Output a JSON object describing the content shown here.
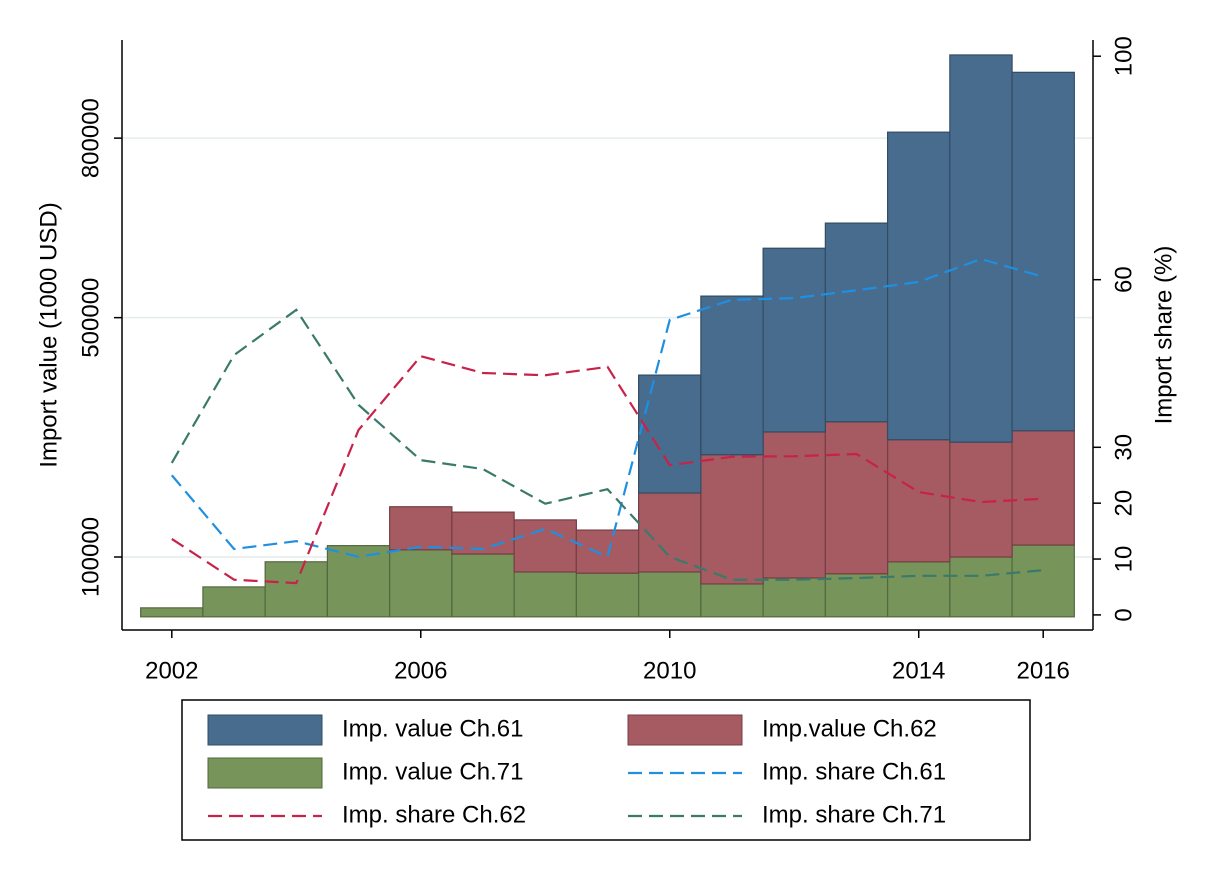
{
  "chart_data": {
    "type": "bar",
    "x": [
      2002,
      2003,
      2004,
      2005,
      2006,
      2007,
      2008,
      2009,
      2010,
      2011,
      2012,
      2013,
      2014,
      2015,
      2016
    ],
    "series": [
      {
        "name": "Imp. value Ch.61",
        "type": "bar",
        "color": "#486c8e",
        "values": [
          0,
          0,
          0,
          0,
          0,
          0,
          0,
          0,
          197000,
          265000,
          307000,
          332000,
          514000,
          647000,
          599000
        ]
      },
      {
        "name": "Imp.value Ch.62",
        "type": "bar",
        "color": "#a65a62",
        "values": [
          0,
          0,
          0,
          0,
          72000,
          70000,
          87000,
          72000,
          132000,
          216000,
          244000,
          254000,
          204000,
          192000,
          191000
        ]
      },
      {
        "name": "Imp. value Ch.71",
        "type": "bar",
        "color": "#77955a",
        "values": [
          15000,
          50000,
          92000,
          119000,
          112000,
          105000,
          75000,
          73000,
          75000,
          55000,
          65000,
          72000,
          92000,
          100000,
          120000
        ]
      },
      {
        "name": "Imp. share Ch.61",
        "type": "line",
        "axis": "y2",
        "style": "dashed",
        "color": "#1f8fe0",
        "values": [
          25,
          11.8,
          13.2,
          10.4,
          12.2,
          11.8,
          15.4,
          10.4,
          52.8,
          56.4,
          56.7,
          58.1,
          59.6,
          63.7,
          60.5
        ]
      },
      {
        "name": "Imp. share Ch.62",
        "type": "line",
        "axis": "y2",
        "style": "dashed",
        "color": "#c8224a",
        "values": [
          13.6,
          6.3,
          5.7,
          33.1,
          46.3,
          43.3,
          42.9,
          44.4,
          26.8,
          28.3,
          28.4,
          28.8,
          22,
          20.2,
          20.8
        ]
      },
      {
        "name": "Imp. share Ch.71",
        "type": "line",
        "axis": "y2",
        "style": "dashed",
        "color": "#3a7a6a",
        "values": [
          27.2,
          46.5,
          54.6,
          37.6,
          27.7,
          26.1,
          19.9,
          22.5,
          10.4,
          6.3,
          6.3,
          6.6,
          7,
          7,
          8
        ]
      }
    ],
    "stacked": true,
    "y_label": "Import value (1000 USD)",
    "y2_label": "Import share (%)",
    "xlim": [
      2001.2,
      2016.8
    ],
    "xticks": [
      2002,
      2006,
      2010,
      2014,
      2016
    ],
    "ylim": [
      -22000,
      964000
    ],
    "yticks": [
      100000,
      500000,
      800000
    ],
    "y2lim": [
      -2.7,
      102.9
    ],
    "y2ticks": [
      0,
      10,
      20,
      30,
      60,
      100
    ],
    "grid": true,
    "legend": "bottom"
  }
}
